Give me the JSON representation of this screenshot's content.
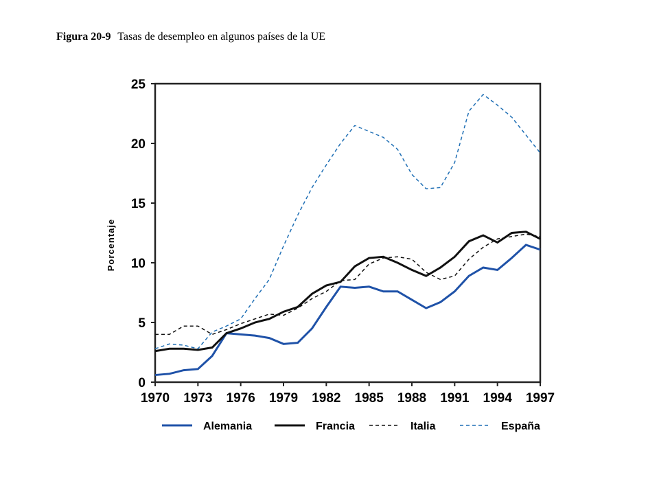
{
  "chart_data": {
    "type": "line",
    "title_label": "Figura 20-9",
    "title": "Tasas de desempleo en algunos países de la UE",
    "ylabel": "Porcentaje",
    "x": [
      1970,
      1971,
      1972,
      1973,
      1974,
      1975,
      1976,
      1977,
      1978,
      1979,
      1980,
      1981,
      1982,
      1983,
      1984,
      1985,
      1986,
      1987,
      1988,
      1989,
      1990,
      1991,
      1992,
      1993,
      1994,
      1995,
      1996,
      1997
    ],
    "xlim": [
      1970,
      1997
    ],
    "xticks": [
      1970,
      1973,
      1976,
      1979,
      1982,
      1985,
      1988,
      1991,
      1994,
      1997
    ],
    "ylim": [
      0,
      25
    ],
    "yticks": [
      0,
      5,
      10,
      15,
      20,
      25
    ],
    "series": [
      {
        "name": "Alemania",
        "color": "#1f52a8",
        "dash": "solid",
        "width": 3,
        "values": [
          0.6,
          0.7,
          1.0,
          1.1,
          2.2,
          4.1,
          4.0,
          3.9,
          3.7,
          3.2,
          3.3,
          4.5,
          6.3,
          8.0,
          7.9,
          8.0,
          7.6,
          7.6,
          6.9,
          6.2,
          6.7,
          7.6,
          8.9,
          9.6,
          9.4,
          10.4,
          11.5,
          11.1
        ]
      },
      {
        "name": "Francia",
        "color": "#111111",
        "dash": "solid",
        "width": 3,
        "values": [
          2.6,
          2.8,
          2.8,
          2.7,
          2.9,
          4.1,
          4.5,
          5.0,
          5.3,
          5.9,
          6.3,
          7.4,
          8.1,
          8.4,
          9.7,
          10.4,
          10.5,
          10.0,
          9.4,
          8.9,
          9.6,
          10.5,
          11.8,
          12.3,
          11.7,
          12.5,
          12.6,
          12.0
        ]
      },
      {
        "name": "Italia",
        "color": "#111111",
        "dash": "dashed",
        "width": 1.5,
        "values": [
          4.0,
          4.0,
          4.7,
          4.7,
          4.0,
          4.4,
          4.9,
          5.3,
          5.7,
          5.6,
          6.2,
          7.0,
          7.6,
          8.5,
          8.6,
          9.9,
          10.4,
          10.5,
          10.3,
          9.2,
          8.6,
          8.9,
          10.3,
          11.3,
          12.0,
          12.2,
          12.4,
          12.2
        ]
      },
      {
        "name": "España",
        "color": "#1f6fb5",
        "dash": "dashed",
        "width": 1.5,
        "values": [
          2.8,
          3.2,
          3.1,
          2.8,
          4.2,
          4.7,
          5.3,
          7.0,
          8.6,
          11.4,
          14.0,
          16.3,
          18.2,
          20.0,
          21.5,
          21.0,
          20.5,
          19.5,
          17.4,
          16.2,
          16.3,
          18.4,
          22.7,
          24.1,
          23.2,
          22.2,
          20.7,
          19.2
        ]
      }
    ]
  }
}
